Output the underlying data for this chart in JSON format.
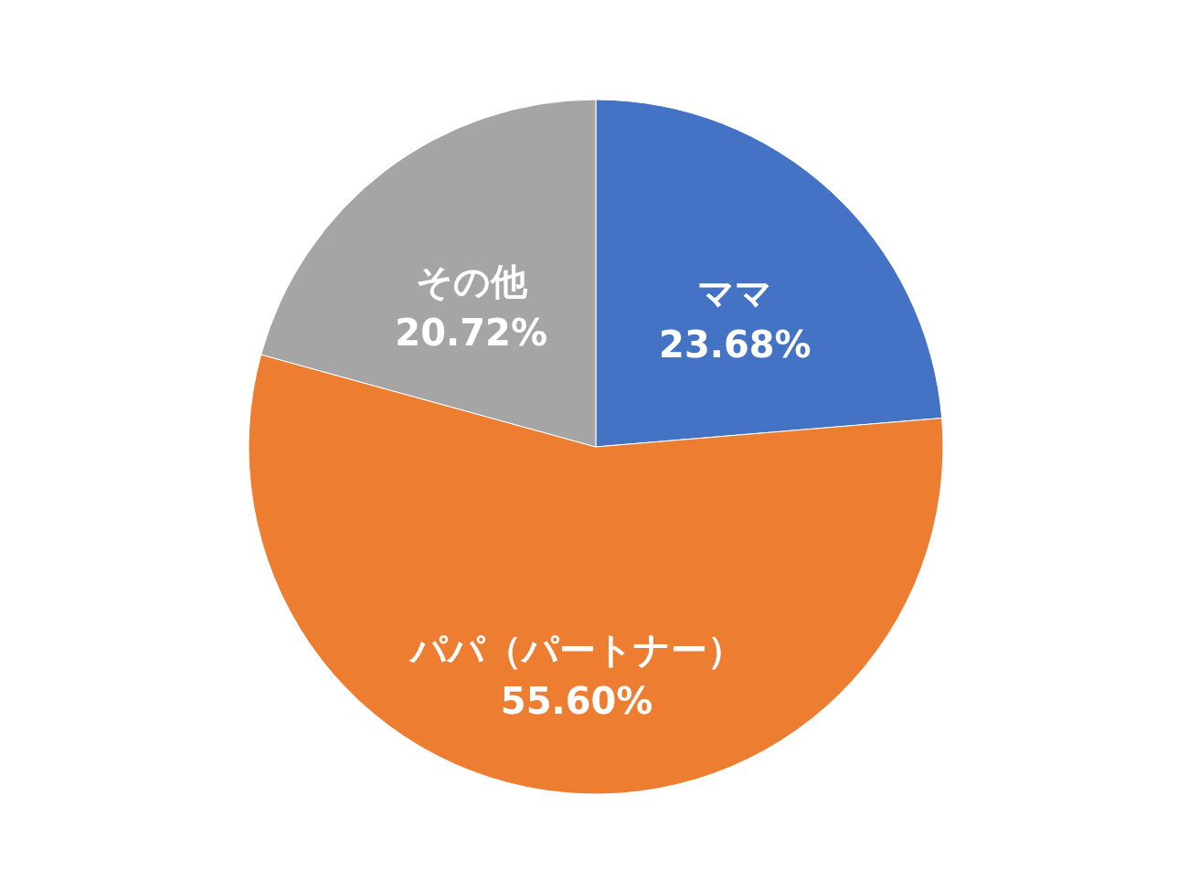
{
  "chart_data": {
    "type": "pie",
    "categories": [
      "ママ",
      "パパ（パートナー）",
      "その他"
    ],
    "values": [
      23.68,
      55.6,
      20.72
    ],
    "value_labels": [
      "23.68%",
      "55.60%",
      "20.72%"
    ],
    "colors": [
      "#4472c4",
      "#ed7d31",
      "#a5a5a5"
    ],
    "legend": false
  }
}
